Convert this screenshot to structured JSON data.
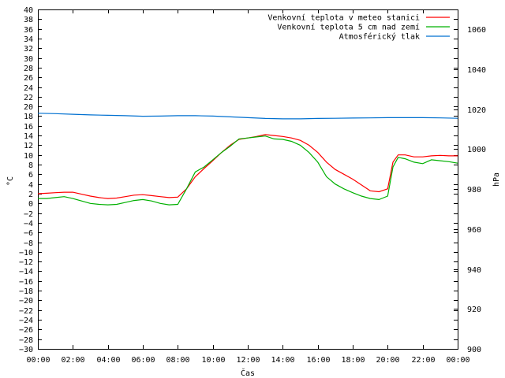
{
  "chart_data": {
    "type": "line",
    "xlabel": "Čas",
    "ylabel": "°C",
    "y2label": "hPa",
    "x_ticks": [
      "00:00",
      "02:00",
      "04:00",
      "06:00",
      "08:00",
      "10:00",
      "12:00",
      "14:00",
      "16:00",
      "18:00",
      "20:00",
      "22:00",
      "00:00"
    ],
    "x_range_hours": [
      0,
      24
    ],
    "ylim": [
      -30,
      40
    ],
    "y_tick_step": 2,
    "y2lim": [
      900,
      1070
    ],
    "y2_ticks": [
      900,
      920,
      940,
      960,
      980,
      1000,
      1020,
      1040,
      1060
    ],
    "grid": false,
    "legend_position": "top-right",
    "series": [
      {
        "name": "Venkovní teplota v meteo stanici",
        "color": "#ff0000",
        "axis": "left",
        "x": [
          0,
          0.5,
          1,
          1.5,
          2,
          2.5,
          3,
          3.5,
          4,
          4.5,
          5,
          5.5,
          6,
          6.5,
          7,
          7.5,
          8,
          8.5,
          9,
          9.5,
          10,
          10.5,
          11,
          11.5,
          12,
          12.5,
          13,
          13.5,
          14,
          14.5,
          15,
          15.5,
          16,
          16.5,
          17,
          17.5,
          18,
          18.5,
          19,
          19.5,
          20,
          20.3,
          20.6,
          21,
          21.5,
          22,
          22.5,
          23,
          23.5,
          24
        ],
        "values": [
          2.0,
          2.1,
          2.2,
          2.3,
          2.3,
          1.9,
          1.5,
          1.2,
          1.0,
          1.1,
          1.4,
          1.7,
          1.8,
          1.6,
          1.4,
          1.2,
          1.3,
          3.0,
          5.5,
          7.2,
          8.8,
          10.5,
          12.0,
          13.2,
          13.5,
          13.8,
          14.2,
          14.0,
          13.8,
          13.5,
          13.0,
          12.0,
          10.5,
          8.5,
          7.0,
          6.0,
          5.0,
          3.8,
          2.6,
          2.4,
          3.0,
          8.5,
          10.0,
          10.0,
          9.6,
          9.6,
          9.8,
          9.9,
          9.8,
          9.8
        ]
      },
      {
        "name": "Venkovní teplota 5 cm nad zemí",
        "color": "#00b000",
        "axis": "left",
        "x": [
          0,
          0.5,
          1,
          1.5,
          2,
          2.5,
          3,
          3.5,
          4,
          4.5,
          5,
          5.5,
          6,
          6.5,
          7,
          7.5,
          8,
          8.5,
          9,
          9.5,
          10,
          10.5,
          11,
          11.5,
          12,
          12.5,
          13,
          13.5,
          14,
          14.5,
          15,
          15.5,
          16,
          16.5,
          17,
          17.5,
          18,
          18.5,
          19,
          19.5,
          20,
          20.3,
          20.6,
          21,
          21.5,
          22,
          22.5,
          23,
          23.5,
          24
        ],
        "values": [
          1.0,
          1.0,
          1.2,
          1.4,
          1.0,
          0.5,
          0.0,
          -0.2,
          -0.3,
          -0.2,
          0.2,
          0.6,
          0.8,
          0.5,
          0.0,
          -0.3,
          -0.2,
          3.0,
          6.5,
          7.5,
          9.0,
          10.5,
          11.8,
          13.3,
          13.5,
          13.7,
          13.9,
          13.3,
          13.2,
          12.8,
          12.0,
          10.5,
          8.5,
          5.5,
          4.0,
          3.0,
          2.2,
          1.5,
          1.0,
          0.8,
          1.5,
          7.5,
          9.5,
          9.2,
          8.5,
          8.2,
          9.0,
          8.8,
          8.6,
          8.3
        ]
      },
      {
        "name": "Atmosférický tlak",
        "color": "#0070d0",
        "axis": "right",
        "x": [
          0,
          1,
          2,
          3,
          4,
          5,
          6,
          7,
          8,
          9,
          10,
          11,
          12,
          13,
          14,
          15,
          16,
          17,
          18,
          19,
          20,
          21,
          22,
          23,
          24
        ],
        "values": [
          1018,
          1017.8,
          1017.5,
          1017.2,
          1017,
          1016.8,
          1016.5,
          1016.6,
          1016.8,
          1016.8,
          1016.6,
          1016.2,
          1015.8,
          1015.4,
          1015.2,
          1015.2,
          1015.4,
          1015.5,
          1015.6,
          1015.7,
          1015.8,
          1015.8,
          1015.8,
          1015.7,
          1015.5
        ]
      }
    ]
  }
}
